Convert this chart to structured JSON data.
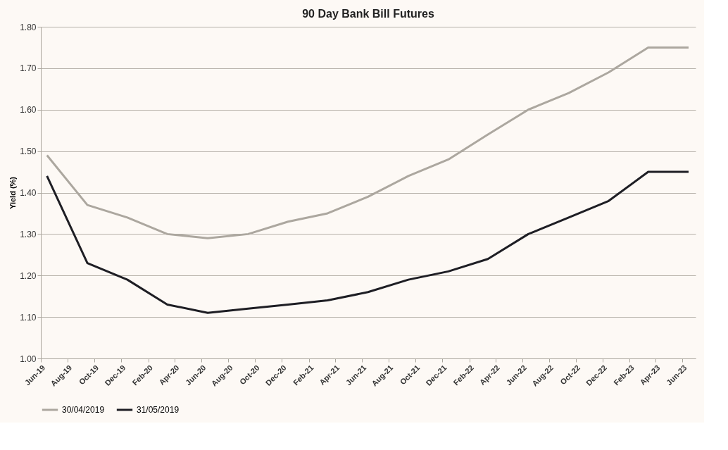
{
  "chart_data": {
    "type": "line",
    "title": "90 Day Bank Bill Futures",
    "ylabel": "Yield (%)",
    "x": [
      "2019-06-15",
      "2019-09-15",
      "2019-12-15",
      "2020-03-15",
      "2020-06-15",
      "2020-09-15",
      "2020-12-15",
      "2021-03-15",
      "2021-06-15",
      "2021-09-15",
      "2021-12-15",
      "2022-03-15",
      "2022-06-15",
      "2022-09-15",
      "2022-12-15",
      "2023-03-15",
      "2023-06-15"
    ],
    "series": [
      {
        "name": "30/04/2019",
        "color": "#aca79f",
        "values": [
          1.49,
          1.37,
          1.34,
          1.3,
          1.29,
          1.3,
          1.33,
          1.35,
          1.39,
          1.44,
          1.48,
          1.54,
          1.6,
          1.64,
          1.69,
          1.75,
          1.75
        ]
      },
      {
        "name": "31/05/2019",
        "color": "#1e1e24",
        "values": [
          1.44,
          1.23,
          1.19,
          1.13,
          1.11,
          1.12,
          1.13,
          1.14,
          1.16,
          1.19,
          1.21,
          1.24,
          1.3,
          1.34,
          1.38,
          1.45,
          1.45
        ]
      }
    ],
    "xlim": [
      "2019-06-01",
      "2023-07-01"
    ],
    "xticks": [
      {
        "value": "2019-06-01",
        "label": "Jun-19"
      },
      {
        "value": "2019-08-01",
        "label": "Aug-19"
      },
      {
        "value": "2019-10-01",
        "label": "Oct-19"
      },
      {
        "value": "2019-12-01",
        "label": "Dec-19"
      },
      {
        "value": "2020-02-01",
        "label": "Feb-20"
      },
      {
        "value": "2020-04-01",
        "label": "Apr-20"
      },
      {
        "value": "2020-06-01",
        "label": "Jun-20"
      },
      {
        "value": "2020-08-01",
        "label": "Aug-20"
      },
      {
        "value": "2020-10-01",
        "label": "Oct-20"
      },
      {
        "value": "2020-12-01",
        "label": "Dec-20"
      },
      {
        "value": "2021-02-01",
        "label": "Feb-21"
      },
      {
        "value": "2021-04-01",
        "label": "Apr-21"
      },
      {
        "value": "2021-06-01",
        "label": "Jun-21"
      },
      {
        "value": "2021-08-01",
        "label": "Aug-21"
      },
      {
        "value": "2021-10-01",
        "label": "Oct-21"
      },
      {
        "value": "2021-12-01",
        "label": "Dec-21"
      },
      {
        "value": "2022-02-01",
        "label": "Feb-22"
      },
      {
        "value": "2022-04-01",
        "label": "Apr-22"
      },
      {
        "value": "2022-06-01",
        "label": "Jun-22"
      },
      {
        "value": "2022-08-01",
        "label": "Aug-22"
      },
      {
        "value": "2022-10-01",
        "label": "Oct-22"
      },
      {
        "value": "2022-12-01",
        "label": "Dec-22"
      },
      {
        "value": "2023-02-01",
        "label": "Feb-23"
      },
      {
        "value": "2023-04-01",
        "label": "Apr-23"
      },
      {
        "value": "2023-06-01",
        "label": "Jun-23"
      }
    ],
    "ylim": [
      1.0,
      1.8
    ],
    "yticks": [
      {
        "value": 1.0,
        "label": "1.00"
      },
      {
        "value": 1.1,
        "label": "1.10"
      },
      {
        "value": 1.2,
        "label": "1.20"
      },
      {
        "value": 1.3,
        "label": "1.30"
      },
      {
        "value": 1.4,
        "label": "1.40"
      },
      {
        "value": 1.5,
        "label": "1.50"
      },
      {
        "value": 1.6,
        "label": "1.60"
      },
      {
        "value": 1.7,
        "label": "1.70"
      },
      {
        "value": 1.8,
        "label": "1.80"
      }
    ],
    "grid": "y",
    "legend": "bottom",
    "marker": "none",
    "line_style": "solid"
  }
}
